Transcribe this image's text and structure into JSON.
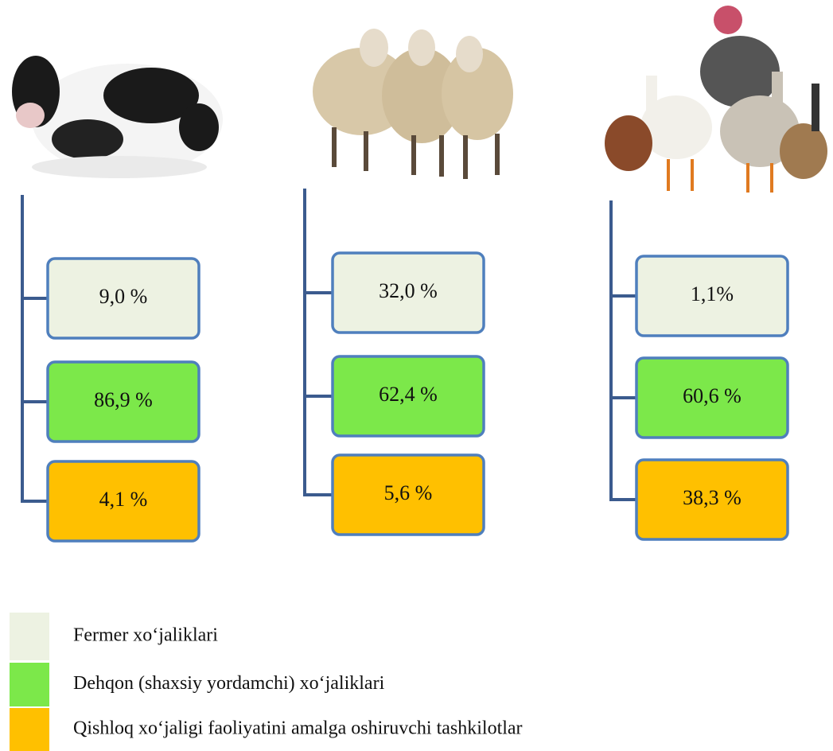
{
  "columns": [
    [
      "9,0 %",
      "86,9 %",
      "4,1 %"
    ],
    [
      "32,0 %",
      "62,4 %",
      "5,6 %"
    ],
    [
      "1,1%",
      "60,6 %",
      "38,3 %"
    ]
  ],
  "legend": [
    {
      "label": "Fermer xo‘jaliklari",
      "color": "#edf2e2"
    },
    {
      "label": "Dehqon (shaxsiy yordamchi) xo‘jaliklari",
      "color": "#7ce84a"
    },
    {
      "label": "Qishloq xo‘jaligi faoliyatini amalga oshiruvchi tashkilotlar",
      "color": "#ffc000"
    }
  ]
}
